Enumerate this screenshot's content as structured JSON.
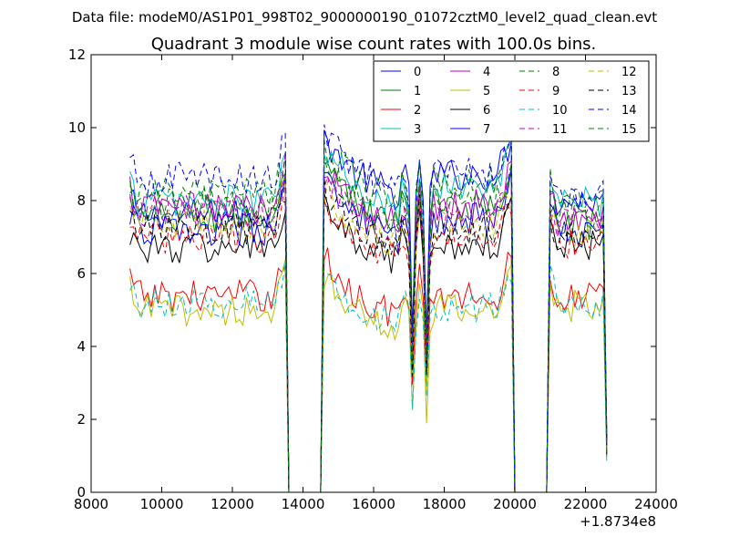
{
  "suptitle": "Data file: modeM0/AS1P01_998T02_9000000190_01072cztM0_level2_quad_clean.evt",
  "chart_data": {
    "type": "line",
    "title": "Quadrant 3 module wise count rates with 100.0s bins.",
    "xlabel": "",
    "ylabel": "",
    "x_offset_label": "+1.8734e8",
    "xlim": [
      8000,
      24000
    ],
    "ylim": [
      0,
      12
    ],
    "xticks": [
      8000,
      10000,
      12000,
      14000,
      16000,
      18000,
      20000,
      22000,
      24000
    ],
    "xtick_labels": [
      "8000",
      "10000",
      "12000",
      "14000",
      "16000",
      "18000",
      "20000",
      "22000",
      "24000"
    ],
    "yticks": [
      0,
      2,
      4,
      6,
      8,
      10,
      12
    ],
    "ytick_labels": [
      "0",
      "2",
      "4",
      "6",
      "8",
      "10",
      "12"
    ],
    "grid": false,
    "legend_position": "top-right",
    "legend_columns": 4,
    "x_segments": [
      [
        9100,
        13500
      ],
      [
        14600,
        19900
      ],
      [
        21000,
        22600
      ]
    ],
    "gap_zero_ranges": [
      [
        13700,
        14500
      ],
      [
        20100,
        20900
      ]
    ],
    "series": [
      {
        "name": "0",
        "color": "#0000ff",
        "dashed": false,
        "levels": [
          7.6,
          8.7,
          8.0
        ],
        "dip": 4.0
      },
      {
        "name": "1",
        "color": "#008000",
        "dashed": false,
        "levels": [
          7.5,
          7.9,
          7.3
        ],
        "dip": 3.5
      },
      {
        "name": "2",
        "color": "#ff0000",
        "dashed": false,
        "levels": [
          5.4,
          5.4,
          5.4
        ],
        "dip": 2.6
      },
      {
        "name": "3",
        "color": "#00bfbf",
        "dashed": false,
        "levels": [
          8.0,
          8.4,
          8.0
        ],
        "dip": 3.0
      },
      {
        "name": "4",
        "color": "#bf00bf",
        "dashed": false,
        "levels": [
          7.8,
          7.9,
          7.6
        ],
        "dip": 3.6
      },
      {
        "name": "5",
        "color": "#bfbf00",
        "dashed": false,
        "levels": [
          5.0,
          5.0,
          5.1
        ],
        "dip": 2.0
      },
      {
        "name": "6",
        "color": "#000000",
        "dashed": false,
        "levels": [
          6.7,
          6.8,
          6.8
        ],
        "dip": 3.0
      },
      {
        "name": "7",
        "color": "#0000ff",
        "dashed": false,
        "levels": [
          7.2,
          7.5,
          7.1
        ],
        "dip": 3.4
      },
      {
        "name": "8",
        "color": "#008000",
        "dashed": true,
        "levels": [
          8.2,
          8.5,
          8.0
        ],
        "dip": 3.8
      },
      {
        "name": "9",
        "color": "#ff0000",
        "dashed": true,
        "levels": [
          7.0,
          7.0,
          6.8
        ],
        "dip": 3.2
      },
      {
        "name": "10",
        "color": "#00bfbf",
        "dashed": true,
        "levels": [
          5.2,
          5.1,
          5.2
        ],
        "dip": 2.2
      },
      {
        "name": "11",
        "color": "#bf00bf",
        "dashed": true,
        "levels": [
          7.7,
          7.6,
          7.4
        ],
        "dip": 3.6
      },
      {
        "name": "12",
        "color": "#bfbf00",
        "dashed": true,
        "levels": [
          7.4,
          7.3,
          7.2
        ],
        "dip": 3.2
      },
      {
        "name": "13",
        "color": "#000000",
        "dashed": true,
        "levels": [
          7.2,
          7.2,
          7.0
        ],
        "dip": 3.2
      },
      {
        "name": "14",
        "color": "#0000ff",
        "dashed": true,
        "levels": [
          8.6,
          8.8,
          8.2
        ],
        "dip": 4.0
      },
      {
        "name": "15",
        "color": "#008000",
        "dashed": true,
        "levels": [
          7.9,
          8.0,
          7.6
        ],
        "dip": 3.6
      }
    ]
  }
}
